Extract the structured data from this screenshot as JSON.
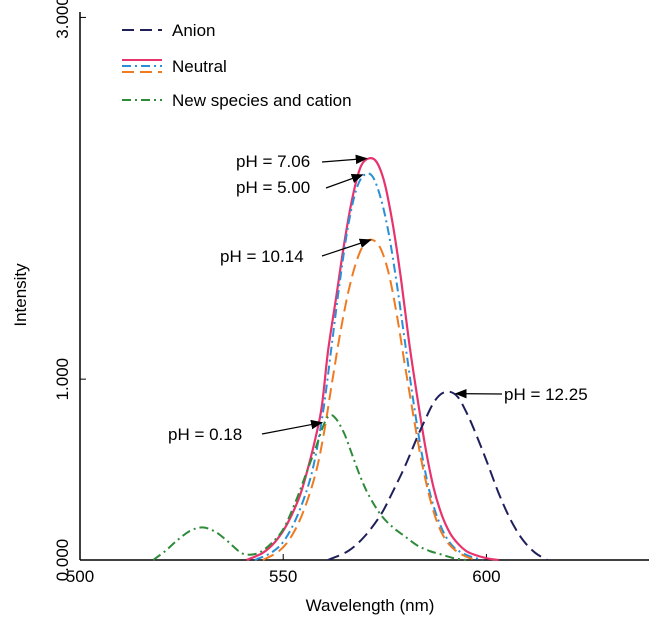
{
  "chart_data": {
    "type": "line",
    "xlabel": "Wavelength (nm)",
    "ylabel": "Intensity",
    "xlim": [
      500,
      640
    ],
    "ylim": [
      0,
      3.0
    ],
    "xticks": [
      500,
      550,
      600
    ],
    "xtick_labels": [
      "500",
      "550",
      "600"
    ],
    "yticks": [
      0,
      1.0,
      3.0
    ],
    "ytick_labels": [
      "0.000",
      "1.000",
      "3.000"
    ],
    "legend": {
      "placement": "top-left",
      "entries": [
        {
          "label": "Anion",
          "styles": [
            {
              "color": "#1f1f5a",
              "dash": "dash"
            }
          ]
        },
        {
          "label": "Neutral",
          "styles": [
            {
              "color": "#e8336d",
              "dash": "solid"
            },
            {
              "color": "#2a8fd6",
              "dash": "dashdot"
            },
            {
              "color": "#f07a20",
              "dash": "dash"
            }
          ]
        },
        {
          "label": "New species and cation",
          "styles": [
            {
              "color": "#2e8b3a",
              "dash": "dashdot"
            }
          ]
        }
      ]
    },
    "series": [
      {
        "color": "#e8336d",
        "dash": "solid",
        "x": [
          541,
          545,
          548,
          551,
          554,
          556,
          558,
          559.5,
          561,
          563,
          565,
          567,
          569,
          571,
          573,
          575,
          577,
          579,
          581,
          583,
          585,
          587,
          589,
          591,
          593,
          595,
          597,
          600,
          603
        ],
        "y": [
          0.0,
          0.04,
          0.1,
          0.2,
          0.35,
          0.5,
          0.68,
          0.85,
          1.15,
          1.45,
          1.75,
          2.0,
          2.17,
          2.22,
          2.2,
          2.08,
          1.85,
          1.55,
          1.2,
          0.9,
          0.62,
          0.4,
          0.25,
          0.15,
          0.09,
          0.05,
          0.03,
          0.01,
          0.0
        ]
      },
      {
        "color": "#2a8fd6",
        "dash": "dashdot",
        "x": [
          543,
          547,
          550,
          553,
          556,
          558,
          560,
          562,
          564,
          566,
          568,
          570,
          572,
          574,
          576,
          578,
          580,
          582,
          584,
          586,
          588,
          590,
          592,
          594,
          596,
          599
        ],
        "y": [
          0.0,
          0.04,
          0.1,
          0.22,
          0.4,
          0.58,
          0.85,
          1.2,
          1.55,
          1.85,
          2.05,
          2.13,
          2.12,
          2.0,
          1.8,
          1.52,
          1.2,
          0.88,
          0.6,
          0.38,
          0.23,
          0.13,
          0.07,
          0.04,
          0.02,
          0.0
        ]
      },
      {
        "color": "#f07a20",
        "dash": "dash",
        "x": [
          545,
          549,
          552,
          555,
          558,
          560,
          562,
          564,
          566,
          568,
          570,
          572,
          574,
          576,
          578,
          580,
          582,
          584,
          586,
          588,
          590,
          592,
          594,
          596,
          598
        ],
        "y": [
          0.0,
          0.05,
          0.13,
          0.27,
          0.48,
          0.7,
          0.98,
          1.25,
          1.48,
          1.65,
          1.75,
          1.77,
          1.72,
          1.58,
          1.35,
          1.07,
          0.8,
          0.55,
          0.35,
          0.2,
          0.11,
          0.06,
          0.03,
          0.01,
          0.0
        ]
      },
      {
        "color": "#2e8b3a",
        "dash": "dashdot",
        "x": [
          518,
          521,
          524,
          527,
          530,
          533,
          536,
          539,
          541,
          544,
          547,
          550,
          553,
          556,
          558,
          560,
          561.5,
          563,
          565,
          567,
          569,
          571,
          574,
          577,
          580,
          583,
          586,
          589,
          592,
          595
        ],
        "y": [
          0.0,
          0.05,
          0.11,
          0.16,
          0.18,
          0.16,
          0.11,
          0.05,
          0.03,
          0.04,
          0.09,
          0.17,
          0.32,
          0.5,
          0.62,
          0.75,
          0.8,
          0.78,
          0.7,
          0.58,
          0.46,
          0.36,
          0.25,
          0.18,
          0.13,
          0.08,
          0.05,
          0.03,
          0.01,
          0.0
        ]
      },
      {
        "color": "#1f1f5a",
        "dash": "dash",
        "x": [
          561,
          566,
          570,
          574,
          577,
          580,
          583,
          585,
          587,
          589,
          591,
          593,
          595,
          597,
          600,
          603,
          606,
          609,
          612,
          615
        ],
        "y": [
          0.0,
          0.05,
          0.13,
          0.25,
          0.38,
          0.52,
          0.68,
          0.78,
          0.87,
          0.92,
          0.93,
          0.9,
          0.82,
          0.72,
          0.55,
          0.37,
          0.22,
          0.11,
          0.04,
          0.0
        ]
      }
    ],
    "annotations": [
      {
        "text": "pH = 7.06",
        "point": [
          571,
          2.22
        ]
      },
      {
        "text": "pH = 5.00",
        "point": [
          570,
          2.13
        ]
      },
      {
        "text": "pH = 10.14",
        "point": [
          572,
          1.77
        ]
      },
      {
        "text": "pH = 0.18",
        "point": [
          560,
          0.76
        ]
      },
      {
        "text": "pH = 12.25",
        "point": [
          592,
          0.92
        ]
      }
    ]
  }
}
